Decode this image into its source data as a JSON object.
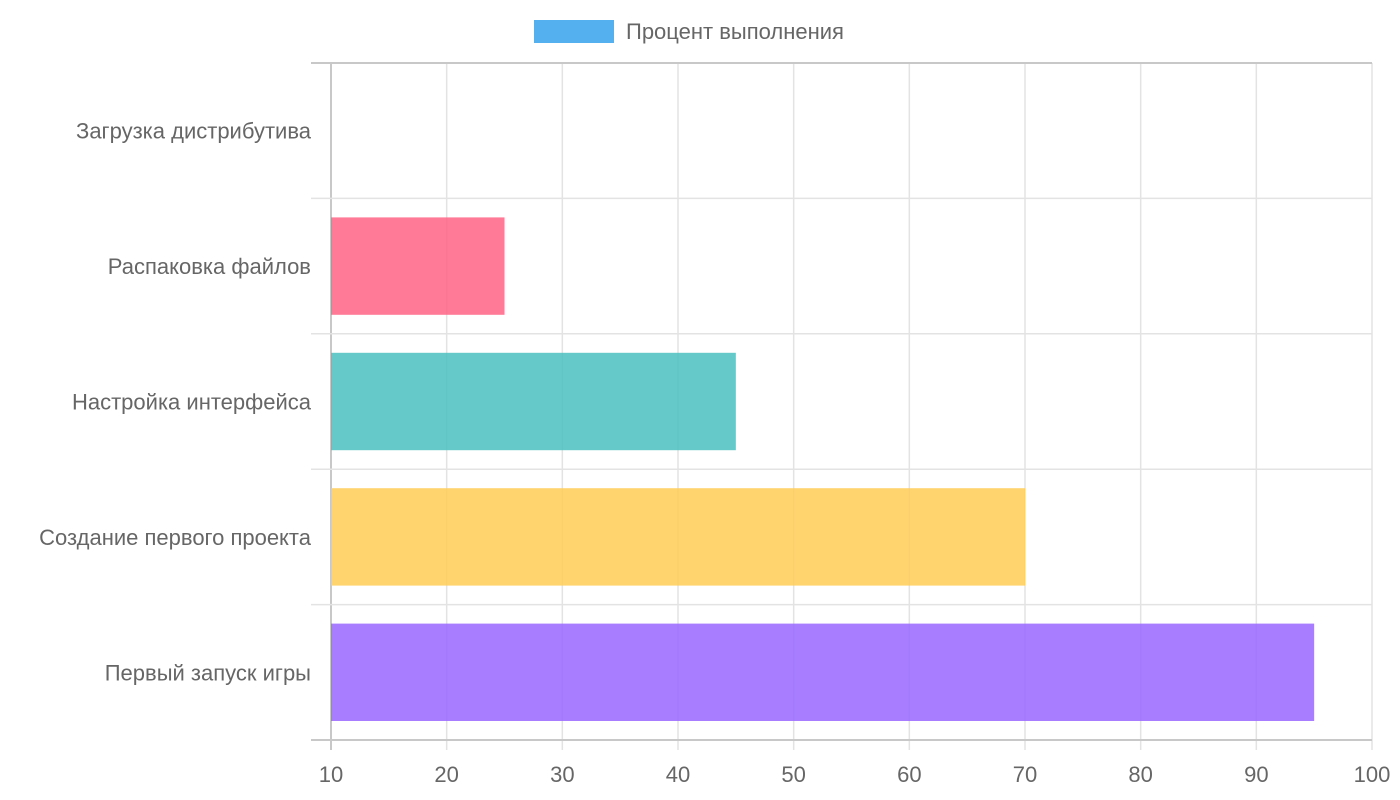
{
  "chart_data": {
    "type": "bar",
    "orientation": "horizontal",
    "categories": [
      "Загрузка дистрибутива",
      "Распаковка файлов",
      "Настройка интерфейса",
      "Создание первого проекта",
      "Первый запуск игры"
    ],
    "series": [
      {
        "name": "Процент выполнения",
        "values": [
          10,
          25,
          45,
          70,
          95
        ]
      }
    ],
    "xlim": [
      10,
      100
    ],
    "xticks": [
      10,
      20,
      30,
      40,
      50,
      60,
      70,
      80,
      90,
      100
    ],
    "title": "",
    "xlabel": "",
    "ylabel": "",
    "grid": true,
    "legend": {
      "position": "top-center",
      "label": "Процент выполнения",
      "color": "#36a2eb"
    },
    "bar_colors": [
      "#36a2eb",
      "#ff6384",
      "#4bc0c0",
      "#ffcd56",
      "#9966ff"
    ],
    "bar_opacity": 0.85
  }
}
